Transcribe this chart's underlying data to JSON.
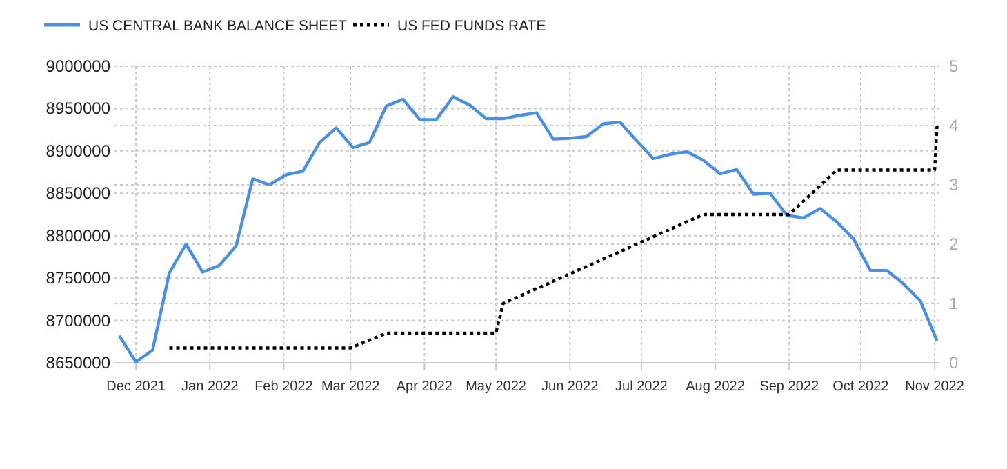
{
  "chart_data": {
    "type": "line",
    "legend": "top left",
    "grid": true,
    "xlim": [
      "2021-11-22",
      "2022-11-03"
    ],
    "xticks": [
      {
        "value": "2021-12-01",
        "label": "Dec 2021"
      },
      {
        "value": "2022-01-01",
        "label": "Jan 2022"
      },
      {
        "value": "2022-02-01",
        "label": "Feb 2022"
      },
      {
        "value": "2022-03-01",
        "label": "Mar 2022"
      },
      {
        "value": "2022-04-01",
        "label": "Apr 2022"
      },
      {
        "value": "2022-05-01",
        "label": "May 2022"
      },
      {
        "value": "2022-06-01",
        "label": "Jun 2022"
      },
      {
        "value": "2022-07-01",
        "label": "Jul 2022"
      },
      {
        "value": "2022-08-01",
        "label": "Aug 2022"
      },
      {
        "value": "2022-09-01",
        "label": "Sep 2022"
      },
      {
        "value": "2022-10-01",
        "label": "Oct 2022"
      },
      {
        "value": "2022-11-01",
        "label": "Nov 2022"
      }
    ],
    "ylim": [
      8650000,
      9000000
    ],
    "yticks": [
      8650000,
      8700000,
      8750000,
      8800000,
      8850000,
      8900000,
      8950000,
      9000000
    ],
    "y2lim": [
      0,
      5
    ],
    "y2ticks": [
      0,
      1,
      2,
      3,
      4,
      5
    ],
    "series": [
      {
        "name": "US CENTRAL BANK BALANCE SHEET",
        "color": "#4a90e2",
        "line_style": "solid",
        "x": [
          "2021-11-24",
          "2021-12-01",
          "2021-12-08",
          "2021-12-15",
          "2021-12-22",
          "2021-12-29",
          "2022-01-05",
          "2022-01-12",
          "2022-01-19",
          "2022-01-26",
          "2022-02-02",
          "2022-02-09",
          "2022-02-16",
          "2022-02-23",
          "2022-03-02",
          "2022-03-09",
          "2022-03-16",
          "2022-03-23",
          "2022-03-30",
          "2022-04-06",
          "2022-04-13",
          "2022-04-20",
          "2022-04-27",
          "2022-05-04",
          "2022-05-11",
          "2022-05-18",
          "2022-05-25",
          "2022-06-01",
          "2022-06-08",
          "2022-06-15",
          "2022-06-22",
          "2022-06-29",
          "2022-07-06",
          "2022-07-13",
          "2022-07-20",
          "2022-07-27",
          "2022-08-03",
          "2022-08-10",
          "2022-08-17",
          "2022-08-24",
          "2022-08-31",
          "2022-09-07",
          "2022-09-14",
          "2022-09-21",
          "2022-09-28",
          "2022-10-05",
          "2022-10-12",
          "2022-10-19",
          "2022-10-26",
          "2022-11-02"
        ],
        "values": [
          8682000,
          8651000,
          8665000,
          8756000,
          8790000,
          8757000,
          8765000,
          8788000,
          8867000,
          8860000,
          8872000,
          8876000,
          8910000,
          8927000,
          8904000,
          8910000,
          8953000,
          8961000,
          8937000,
          8937000,
          8964000,
          8954000,
          8938000,
          8938000,
          8942000,
          8945000,
          8914000,
          8915000,
          8917000,
          8932000,
          8934000,
          8912000,
          8891000,
          8896000,
          8899000,
          8889000,
          8873000,
          8878000,
          8849000,
          8850000,
          8824000,
          8821000,
          8832000,
          8816000,
          8796000,
          8759000,
          8759000,
          8743000,
          8723000,
          8676000
        ]
      },
      {
        "name": "US FED FUNDS RATE",
        "color": "#000000",
        "line_style": "dotted",
        "axis": "y2",
        "x": [
          "2021-12-15",
          "2022-03-01",
          "2022-03-16",
          "2022-05-01",
          "2022-05-04",
          "2022-06-15",
          "2022-07-27",
          "2022-09-01",
          "2022-09-21",
          "2022-11-01",
          "2022-11-02"
        ],
        "values": [
          0.25,
          0.25,
          0.5,
          0.5,
          1.0,
          1.75,
          2.5,
          2.5,
          3.25,
          3.25,
          4.0
        ]
      }
    ]
  }
}
